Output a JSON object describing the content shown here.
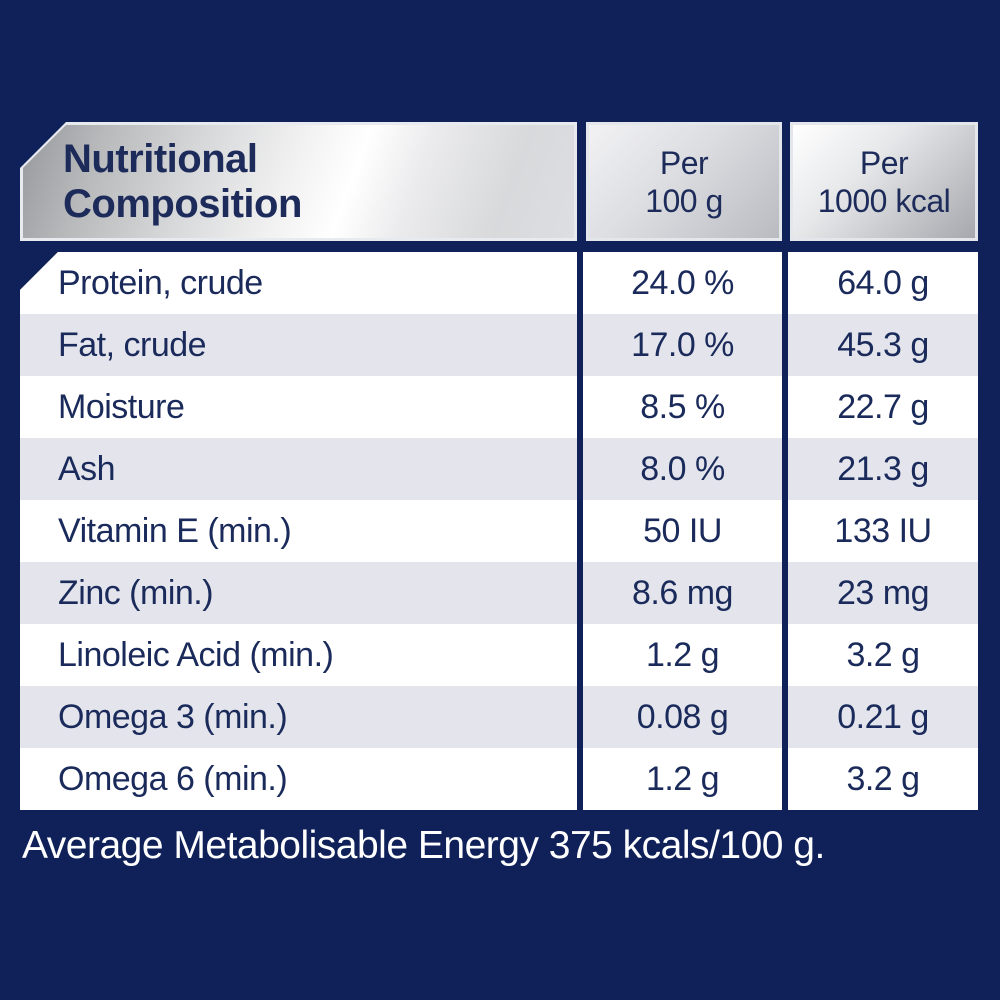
{
  "colors": {
    "background_navy": "#0f2158",
    "text_navy": "#1d2b5a",
    "row_alt_gray": "#e4e5ec",
    "row_white": "#ffffff",
    "header_silver_light": "#ffffff",
    "header_silver_dark": "#97989c"
  },
  "table": {
    "header": {
      "col1_line1": "Nutritional",
      "col1_line2": "Composition",
      "col2_line1": "Per",
      "col2_line2": "100 g",
      "col3_line1": "Per",
      "col3_line2": "1000 kcal"
    },
    "rows": [
      {
        "label": "Protein, crude",
        "per_100g": "24.0 %",
        "per_1000kcal": "64.0 g"
      },
      {
        "label": "Fat, crude",
        "per_100g": "17.0 %",
        "per_1000kcal": "45.3 g"
      },
      {
        "label": "Moisture",
        "per_100g": "8.5 %",
        "per_1000kcal": "22.7 g"
      },
      {
        "label": "Ash",
        "per_100g": "8.0 %",
        "per_1000kcal": "21.3 g"
      },
      {
        "label": "Vitamin E (min.)",
        "per_100g": "50 IU",
        "per_1000kcal": "133 IU"
      },
      {
        "label": "Zinc (min.)",
        "per_100g": "8.6 mg",
        "per_1000kcal": "23 mg"
      },
      {
        "label": "Linoleic Acid (min.)",
        "per_100g": "1.2 g",
        "per_1000kcal": "3.2 g"
      },
      {
        "label": "Omega 3 (min.)",
        "per_100g": "0.08 g",
        "per_1000kcal": "0.21 g"
      },
      {
        "label": "Omega 6 (min.)",
        "per_100g": "1.2 g",
        "per_1000kcal": "3.2 g"
      }
    ]
  },
  "footer": {
    "text": "Average Metabolisable Energy 375 kcals/100 g."
  }
}
